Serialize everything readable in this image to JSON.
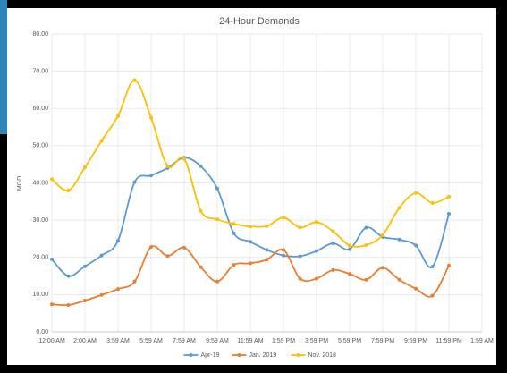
{
  "chart_data": {
    "type": "line",
    "title": "24-Hour Demands",
    "ylabel": "MGD",
    "x": [
      0,
      1,
      2,
      3,
      4,
      5,
      6,
      7,
      8,
      9,
      10,
      11,
      12,
      13,
      14,
      15,
      16,
      17,
      18,
      19,
      20,
      21,
      22,
      23,
      24
    ],
    "xlim": [
      0,
      26
    ],
    "xticks": [
      {
        "value": 0,
        "label": "12:00 AM"
      },
      {
        "value": 2,
        "label": "2:00 AM"
      },
      {
        "value": 4,
        "label": "3:59 AM"
      },
      {
        "value": 6,
        "label": "5:59 AM"
      },
      {
        "value": 8,
        "label": "7:59 AM"
      },
      {
        "value": 10,
        "label": "9:59 AM"
      },
      {
        "value": 12,
        "label": "11:59 AM"
      },
      {
        "value": 14,
        "label": "1:59 PM"
      },
      {
        "value": 16,
        "label": "3:59 PM"
      },
      {
        "value": 18,
        "label": "5:59 PM"
      },
      {
        "value": 20,
        "label": "7:59 PM"
      },
      {
        "value": 22,
        "label": "9:59 PM"
      },
      {
        "value": 24,
        "label": "11:59 PM"
      },
      {
        "value": 26,
        "label": "1:59 AM"
      }
    ],
    "ylim": [
      0,
      80
    ],
    "yticks": [
      {
        "value": 0,
        "label": "0.00"
      },
      {
        "value": 10,
        "label": "10.00"
      },
      {
        "value": 20,
        "label": "20.00"
      },
      {
        "value": 30,
        "label": "30.00"
      },
      {
        "value": 40,
        "label": "40.00"
      },
      {
        "value": 50,
        "label": "50.00"
      },
      {
        "value": 60,
        "label": "60.00"
      },
      {
        "value": 70,
        "label": "70.00"
      },
      {
        "value": 80,
        "label": "80.00"
      }
    ],
    "grid": true,
    "smooth": true,
    "legend": "bottom",
    "series": [
      {
        "name": "Apr-19",
        "color": "#5b9bd5",
        "values": [
          19.5,
          15,
          17.6,
          20.5,
          24.5,
          40.2,
          42,
          44,
          46.8,
          44.5,
          38.5,
          26.5,
          24.2,
          22,
          20.5,
          20.3,
          21.7,
          23.8,
          22.2,
          28,
          25.5,
          24.8,
          23.2,
          17.5,
          31.7
        ]
      },
      {
        "name": "Jan. 2019",
        "color": "#ed7d31",
        "values": [
          7.4,
          7.2,
          8.4,
          9.9,
          11.5,
          13.5,
          22.8,
          20.4,
          22.6,
          17.4,
          13.5,
          18,
          18.4,
          19.4,
          22,
          14.3,
          14.3,
          16.6,
          15.6,
          14,
          17.2,
          14,
          11.6,
          9.7,
          17.8
        ]
      },
      {
        "name": "Nov. 2018",
        "color": "#ffc000",
        "values": [
          41,
          38,
          44.2,
          51.3,
          58,
          67.6,
          57.5,
          44.5,
          46.5,
          32.5,
          30.2,
          29,
          28.3,
          28.4,
          30.7,
          28,
          29.5,
          27,
          23.2,
          23.3,
          26,
          33.3,
          37.3,
          34.6,
          36.3
        ]
      }
    ]
  }
}
